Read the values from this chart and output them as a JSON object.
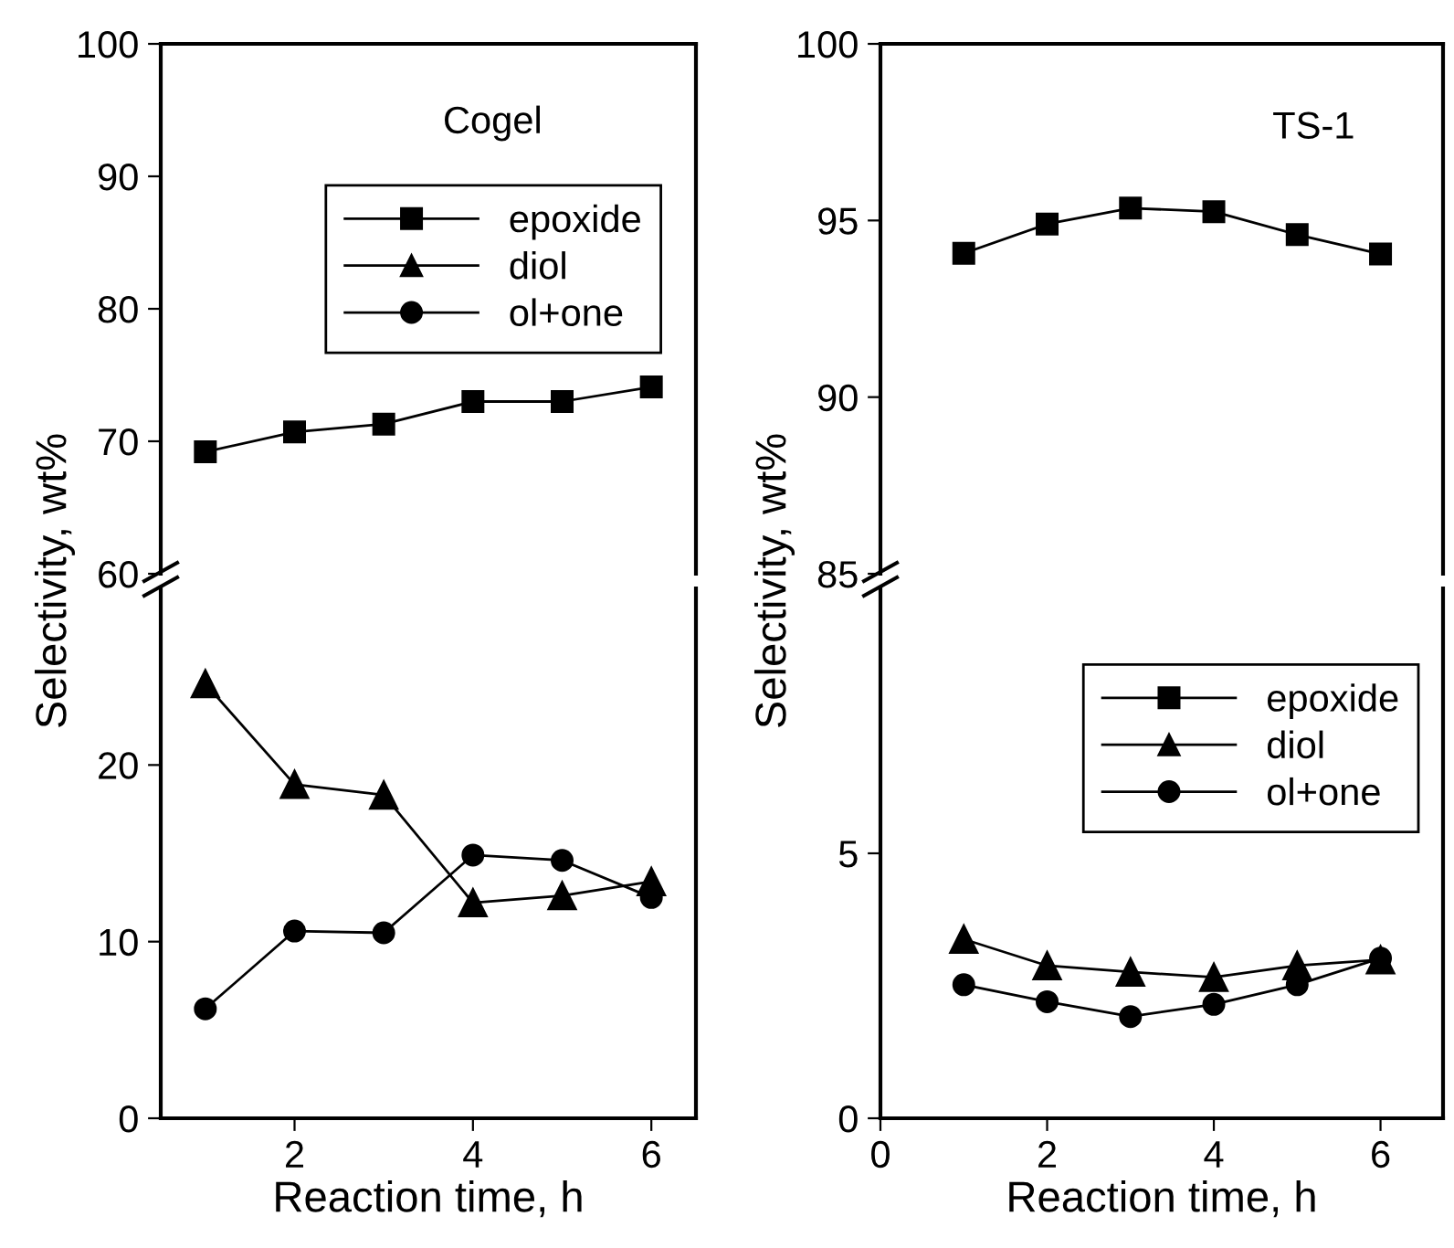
{
  "chart_data": [
    {
      "type": "line",
      "annotations": [
        "Cogel"
      ],
      "xlim": [
        0.5,
        6.5
      ],
      "ylim": [
        60,
        100
      ],
      "yticks": [
        60,
        70,
        80,
        90,
        100
      ],
      "tick_labels": "y",
      "legend": "top right",
      "x": [
        1,
        2,
        3,
        4,
        5,
        6
      ],
      "series": [
        {
          "name": "epoxide",
          "color": "#000000",
          "marker": "square",
          "values": [
            69.2,
            70.7,
            71.3,
            73.0,
            73.0,
            74.1
          ]
        }
      ]
    },
    {
      "type": "line",
      "xlabel": "Reaction time, h",
      "ylabel": "Selectivity, wt%",
      "legend": "top right",
      "xlim": [
        0.5,
        6.5
      ],
      "xticks": [
        2,
        4,
        6
      ],
      "ylim": [
        0,
        30
      ],
      "yticks": [
        0,
        10,
        20
      ],
      "x": [
        1,
        2,
        3,
        4,
        5,
        6
      ],
      "series": [
        {
          "name": "diol",
          "color": "#000000",
          "marker": "triangle",
          "values": [
            24.6,
            18.9,
            18.3,
            12.2,
            12.6,
            13.4
          ]
        },
        {
          "name": "ol+one",
          "color": "#000000",
          "marker": "circle",
          "values": [
            6.2,
            10.6,
            10.5,
            14.9,
            14.6,
            12.5
          ]
        }
      ]
    },
    {
      "type": "line",
      "annotations": [
        "TS-1"
      ],
      "xlim": [
        0,
        6.75
      ],
      "ylim": [
        85,
        100
      ],
      "yticks": [
        85,
        90,
        95,
        100
      ],
      "tick_labels": "y",
      "legend": "right",
      "x": [
        1,
        2,
        3,
        4,
        5,
        6
      ],
      "series": [
        {
          "name": "epoxide",
          "color": "#000000",
          "marker": "square",
          "values": [
            94.07,
            94.9,
            95.35,
            95.25,
            94.6,
            94.05
          ]
        }
      ]
    },
    {
      "type": "line",
      "xlabel": "Reaction time, h",
      "ylabel": "Selectivity, wt%",
      "legend": "right",
      "xlim": [
        0,
        6.75
      ],
      "xticks": [
        0,
        2,
        4,
        6
      ],
      "ylim": [
        0,
        10
      ],
      "yticks": [
        0,
        5
      ],
      "x": [
        1,
        2,
        3,
        4,
        5,
        6
      ],
      "series": [
        {
          "name": "diol",
          "color": "#000000",
          "marker": "triangle",
          "values": [
            3.38,
            2.88,
            2.76,
            2.66,
            2.88,
            2.99
          ]
        },
        {
          "name": "ol+one",
          "color": "#000000",
          "marker": "circle",
          "values": [
            2.52,
            2.2,
            1.92,
            2.15,
            2.52,
            3.02
          ]
        }
      ]
    }
  ]
}
